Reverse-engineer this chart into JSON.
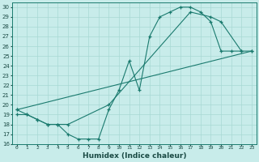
{
  "xlabel": "Humidex (Indice chaleur)",
  "xlim": [
    -0.5,
    23.5
  ],
  "ylim": [
    16,
    30.5
  ],
  "xticks": [
    0,
    1,
    2,
    3,
    4,
    5,
    6,
    7,
    8,
    9,
    10,
    11,
    12,
    13,
    14,
    15,
    16,
    17,
    18,
    19,
    20,
    21,
    22,
    23
  ],
  "yticks": [
    16,
    17,
    18,
    19,
    20,
    21,
    22,
    23,
    24,
    25,
    26,
    27,
    28,
    29,
    30
  ],
  "bg_color": "#c8ecea",
  "grid_color": "#a8d8d4",
  "line_color": "#1a7a6e",
  "line1_x": [
    0,
    1,
    2,
    3,
    4,
    5,
    6,
    7,
    8,
    9,
    10,
    11,
    12,
    13,
    14,
    15,
    16,
    17,
    18,
    19,
    20,
    21,
    22
  ],
  "line1_y": [
    19.0,
    19.0,
    18.5,
    18.0,
    18.0,
    17.0,
    16.5,
    16.5,
    16.5,
    19.5,
    21.5,
    24.5,
    21.5,
    27.0,
    29.0,
    29.5,
    30.0,
    30.0,
    29.5,
    28.5,
    25.5,
    25.5,
    25.5
  ],
  "line2_x": [
    0,
    1,
    2,
    3,
    4,
    5,
    9,
    17,
    19,
    20,
    22,
    23
  ],
  "line2_y": [
    19.5,
    19.0,
    18.5,
    18.0,
    18.0,
    18.0,
    20.0,
    29.5,
    29.0,
    28.5,
    25.5,
    25.5
  ],
  "line3_x": [
    0,
    23
  ],
  "line3_y": [
    19.5,
    25.5
  ]
}
